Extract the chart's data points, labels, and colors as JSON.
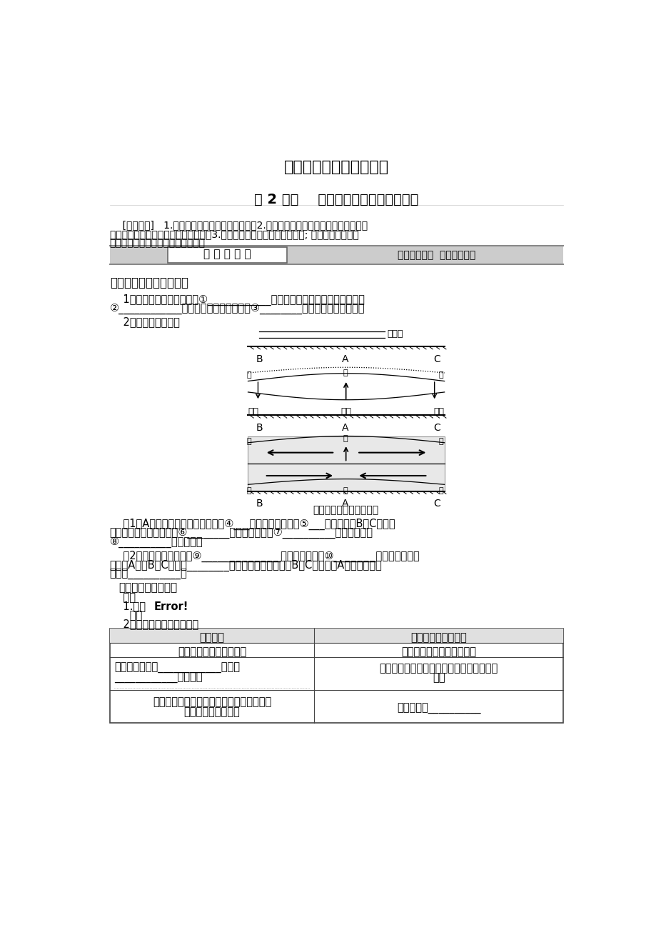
{
  "title1": "最新版地理精品学习资料",
  "title2": "第 2 课时    热力环流与大气的水平运动",
  "obj_line1": "    [学习目标]   1.理解大气热力环流形成的原理。2.结合图示理解水平气压梯度力、地转偏",
  "obj_line2": "向力、摩擦力对大气水平运动的影响。3.分析生活中常见的大气运动现象; 运用等压线分布图",
  "obj_line3": "判断某地的风向，比较两地的风速。",
  "section_header": "课 前 准 备 区",
  "section_right": "自主学习教材  独立思考问题",
  "section1_title": "一、热力环流形成的原理",
  "q1_line1": "    1．大气运动的根本原因：①____________在地表的差异分布，造成不同地区",
  "q1_line2": "②____________不同，导致水平方向上的③________差异，引起大气运动。",
  "q2": "    2．热力环流的形成",
  "diagram_caption": "冷热不均引起的热力环流",
  "q3_1_line1": "    （1）A地受热较多时，近地面形成④___气压，其高空形成⑤___气压；同时B、C两地受",
  "q3_1_line2": "热较少，空气冷却下降在⑥________形成低气压，在⑦__________形成高气压。",
  "q3_1_line3": "⑧__________出现弯曲。",
  "q3_2_line1": "    （2）水平气压差异产生⑨_______________，并造成空气的⑩________运动；在高空，",
  "q3_2_line2": "空气从A地向B、C两地⑪________；在近地面，空气则由B、C两地流向A地，这样就形",
  "q3_2_line3": "成了⑫__________。",
  "section2_title": "二、大气的水平运动",
  "wind_intro": "    风的",
  "basic_line": "    1.基本 Error!",
  "elements_line": "      要素",
  "table_intro": "    2．不同受力情况下的风向",
  "table_header1": "受力情况",
  "table_header2": "风向与等压线的关系",
  "t_row0_c1": "只受水平气压梯度力作用",
  "t_row0_c2": "垂直等压线由高压指向低压",
  "t_row1_c1_l1": "在高空，只受⑯____________力和⑰",
  "t_row1_c1_l2": "____________力的影响",
  "t_row1_c2_l1": "与等压线平行，在北半球向右偏、南半球向",
  "t_row1_c2_l2": "左偏",
  "t_row2_c1_l1": "在近地面，受水平气压梯度力、地转偏向力",
  "t_row2_c1_l2": "和摩擦力的共同作用",
  "t_row2_c2": "与等压线⑱__________",
  "bg_color": "#ffffff"
}
